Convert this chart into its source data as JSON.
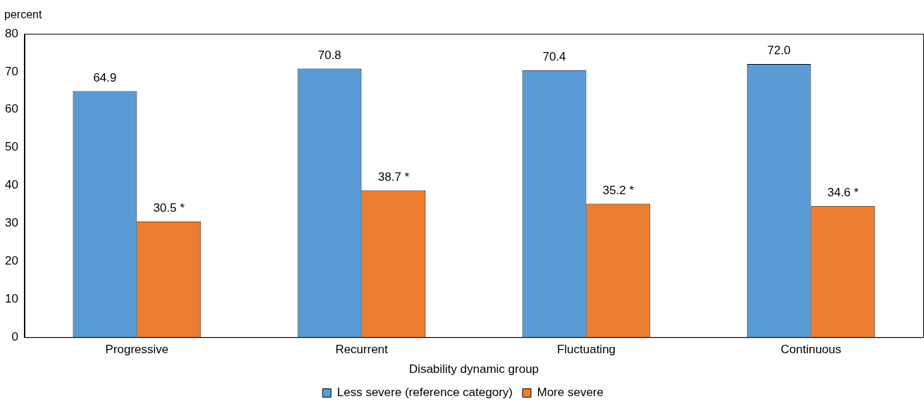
{
  "chart_data": {
    "type": "bar",
    "ylabel": "percent",
    "xlabel": "Disability dynamic group",
    "categories": [
      "Progressive",
      "Recurrent",
      "Fluctuating",
      "Continuous"
    ],
    "series": [
      {
        "name": "Less severe (reference category)",
        "color": "#5b9bd5",
        "values": [
          64.9,
          70.8,
          70.4,
          72.0
        ],
        "value_labels": [
          "64.9",
          "70.8",
          "70.4",
          "72.0"
        ]
      },
      {
        "name": "More severe",
        "color": "#ed7d31",
        "values": [
          30.5,
          38.7,
          35.2,
          34.6
        ],
        "value_labels": [
          "30.5 *",
          "38.7 *",
          "35.2 *",
          "34.6 *"
        ]
      }
    ],
    "ylim": [
      0,
      80
    ],
    "yticks": [
      0,
      10,
      20,
      30,
      40,
      50,
      60,
      70,
      80
    ],
    "grid": false,
    "legend": "bottom"
  }
}
